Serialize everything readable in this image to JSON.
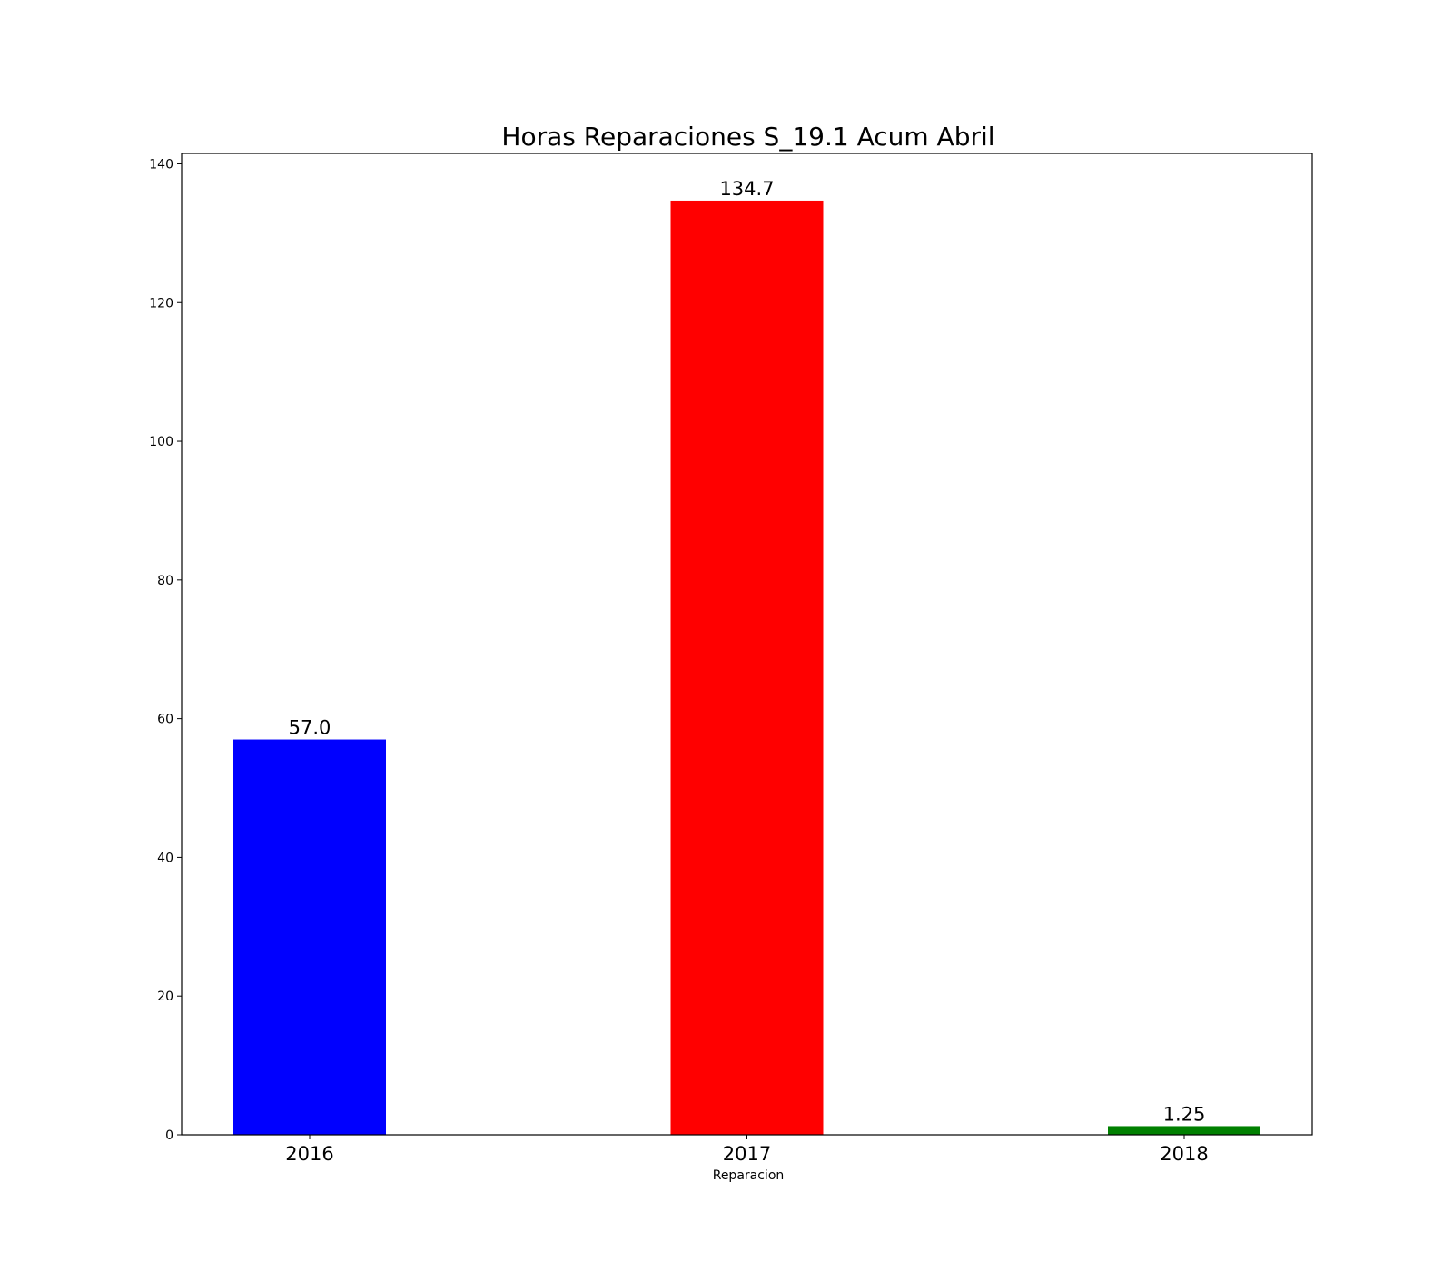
{
  "chart_data": {
    "type": "bar",
    "title": "Horas Reparaciones S_19.1 Acum Abril",
    "xlabel": "Reparacion",
    "ylabel": "",
    "categories": [
      "2016",
      "2017",
      "2018"
    ],
    "values": [
      57.0,
      134.7,
      1.25
    ],
    "value_labels": [
      "57.0",
      "134.7",
      "1.25"
    ],
    "bar_colors": [
      "#0000ff",
      "#ff0000",
      "#008000"
    ],
    "ylim": [
      0,
      141.5
    ],
    "yticks": [
      0,
      20,
      40,
      60,
      80,
      100,
      120,
      140
    ],
    "ytick_labels": [
      "0",
      "20",
      "40",
      "60",
      "80",
      "100",
      "120",
      "140"
    ],
    "grid": false,
    "legend": "none"
  }
}
